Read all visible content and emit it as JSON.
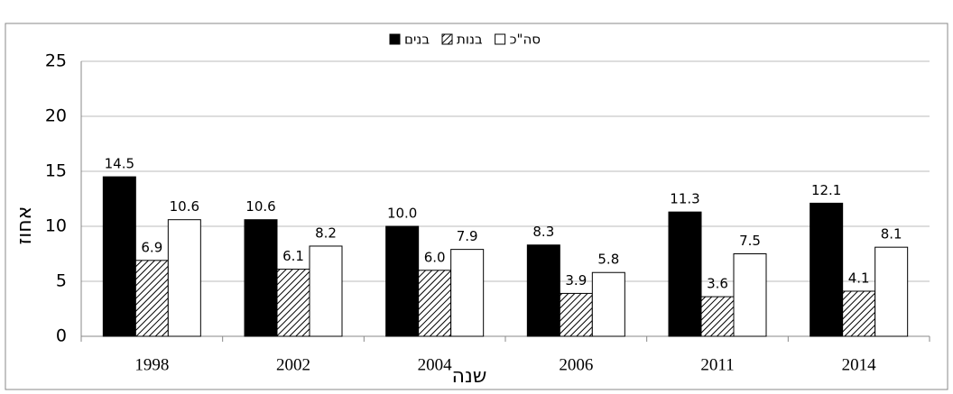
{
  "chart_data": {
    "type": "bar",
    "categories": [
      "1998",
      "2002",
      "2004",
      "2006",
      "2011",
      "2014"
    ],
    "x_label": "שנה",
    "y_label": "אחוז",
    "series": [
      {
        "name": "בנים",
        "color": "#000000",
        "values": [
          14.5,
          10.6,
          10.0,
          8.3,
          11.3,
          12.1
        ],
        "value_labels": [
          "14.5",
          "10.6",
          "10.0",
          "8.3",
          "11.3",
          "12.1"
        ]
      },
      {
        "name": "בנות",
        "color": "#000000",
        "pattern": "hatch",
        "values": [
          6.9,
          6.1,
          6.0,
          3.9,
          3.6,
          4.1
        ],
        "value_labels": [
          "6.9",
          "6.1",
          "6.0",
          "3.9",
          "3.6",
          "4.1"
        ]
      },
      {
        "name": "סה\"כ",
        "color": "#ffffff",
        "values": [
          10.6,
          8.2,
          7.9,
          5.8,
          7.5,
          8.1
        ],
        "value_labels": [
          "10.6",
          "8.2",
          "7.9",
          "5.8",
          "7.5",
          "8.1"
        ]
      }
    ],
    "ylim": [
      0,
      25
    ],
    "yticks": [
      0,
      5,
      10,
      15,
      20,
      25
    ],
    "grid": true,
    "legend": "top"
  }
}
